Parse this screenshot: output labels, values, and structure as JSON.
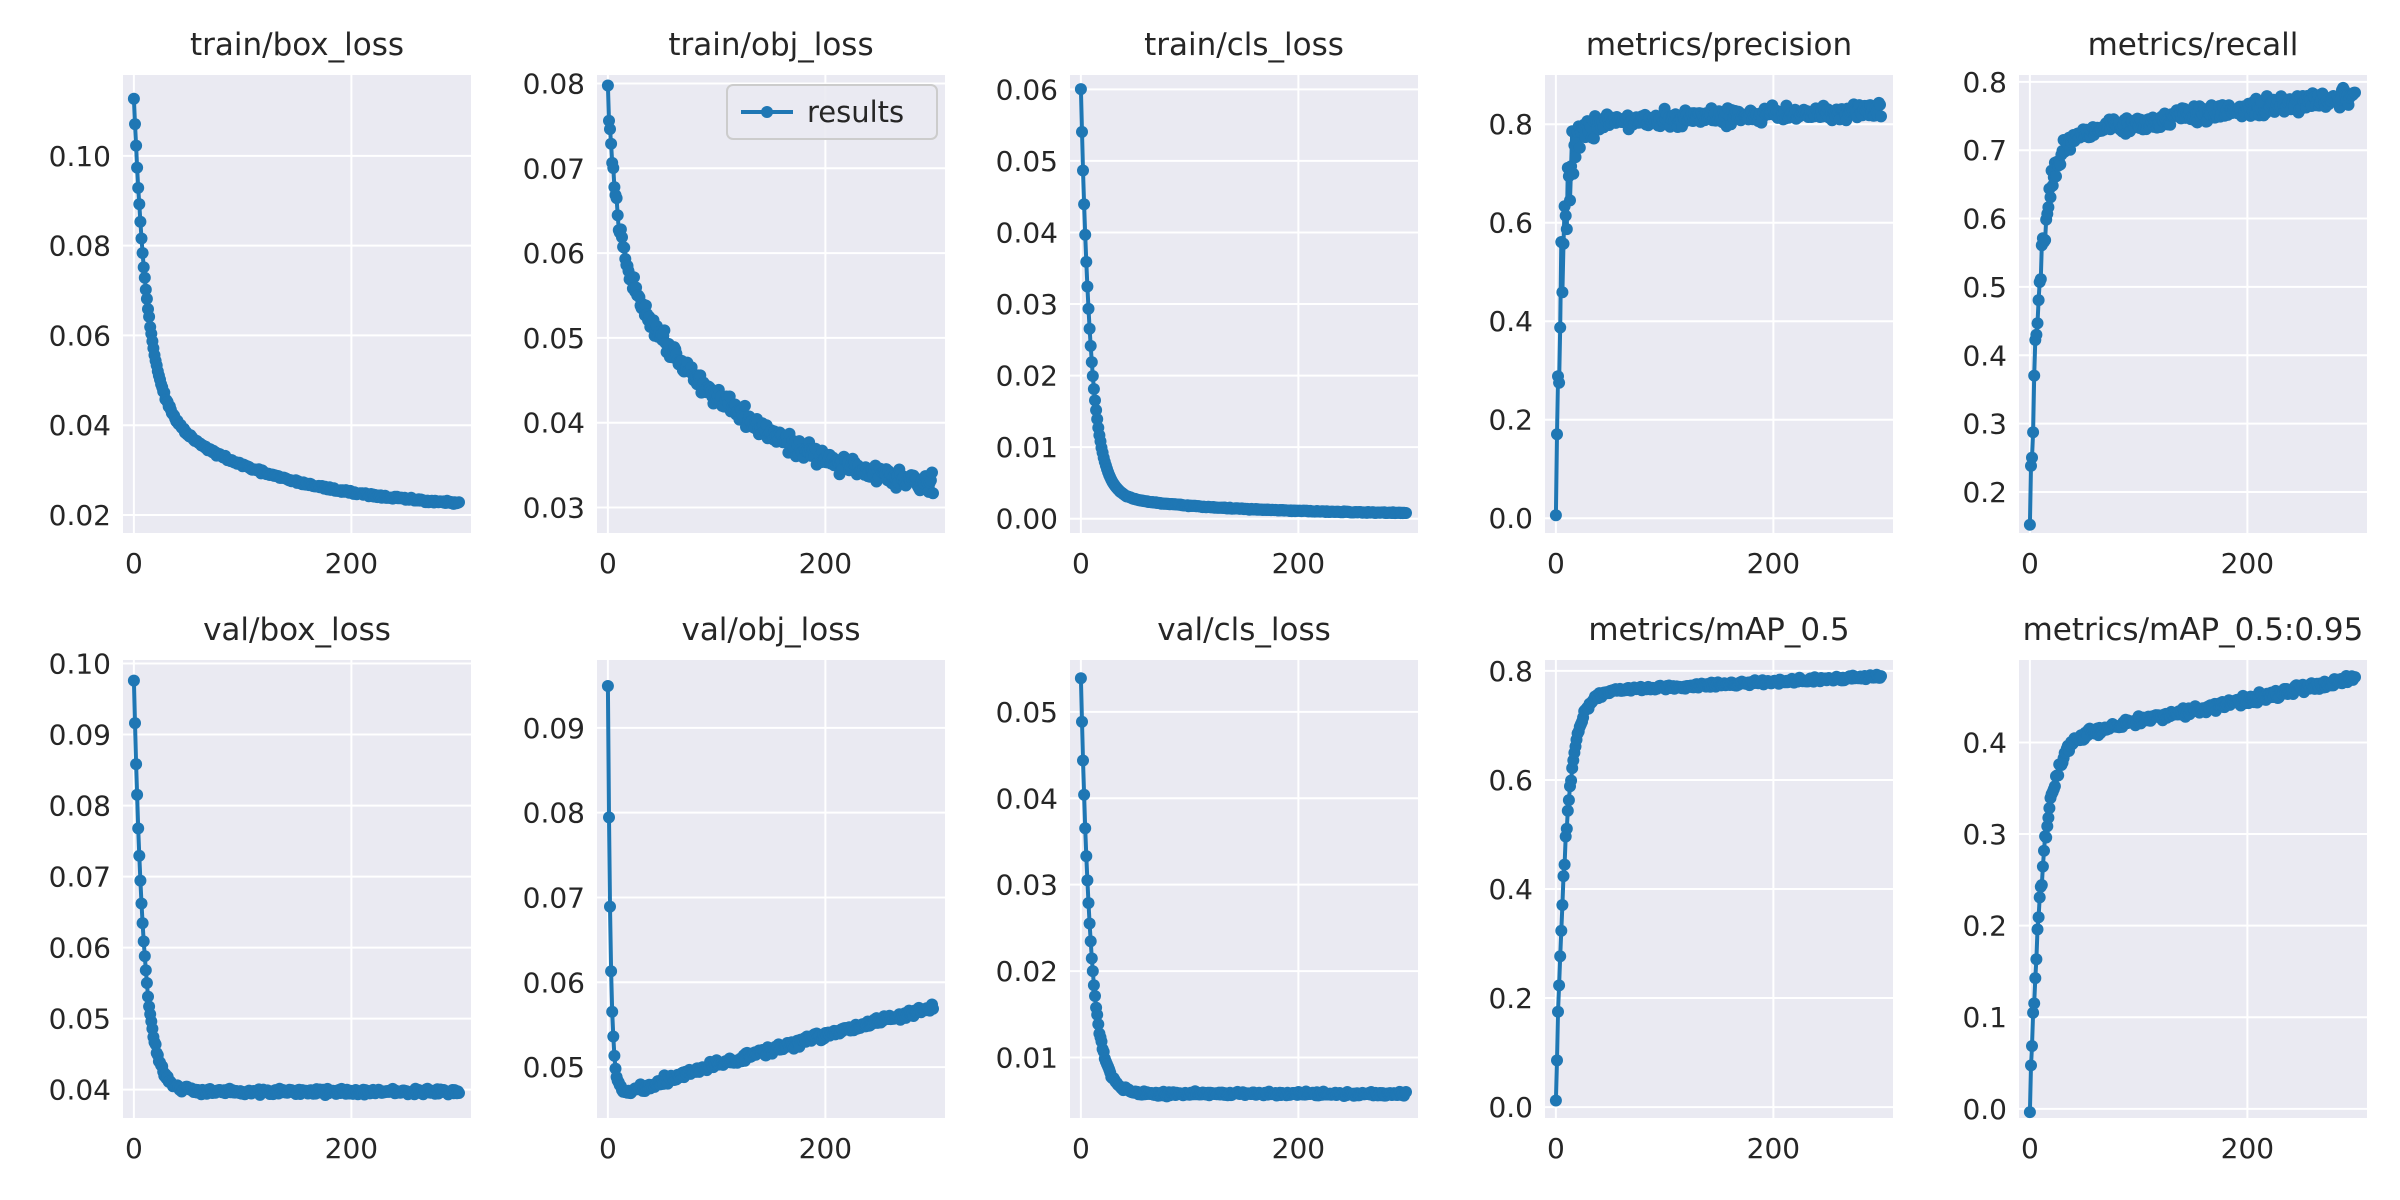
{
  "legend": {
    "label": "results",
    "panel": 1
  },
  "colors": {
    "series": "#1f77b4",
    "panel_bg": "#eaeaf2",
    "grid": "#ffffff",
    "text": "#262626"
  },
  "chart_data": [
    {
      "type": "line",
      "title": "train/box_loss",
      "xlim": [
        -10,
        310
      ],
      "ylim": [
        0.016,
        0.118
      ],
      "xticks": [
        0,
        200
      ],
      "yticks": [
        0.02,
        0.04,
        0.06,
        0.08,
        0.1
      ],
      "ytick_labels": [
        "0.02",
        "0.04",
        "0.06",
        "0.08",
        "0.10"
      ],
      "curve": {
        "kind": "decay",
        "start": 0.113,
        "end": 0.021,
        "tau": 12,
        "slow": 0.025,
        "noise": 0.0005
      }
    },
    {
      "type": "line",
      "title": "train/obj_loss",
      "xlim": [
        -10,
        310
      ],
      "ylim": [
        0.027,
        0.081
      ],
      "xticks": [
        0,
        200
      ],
      "yticks": [
        0.03,
        0.04,
        0.05,
        0.06,
        0.07,
        0.08
      ],
      "ytick_labels": [
        "0.03",
        "0.04",
        "0.05",
        "0.06",
        "0.07",
        "0.08"
      ],
      "curve": {
        "kind": "decay",
        "start": 0.079,
        "end": 0.031,
        "tau": 8,
        "slow": 0.03,
        "noise": 0.0016
      }
    },
    {
      "type": "line",
      "title": "train/cls_loss",
      "xlim": [
        -10,
        310
      ],
      "ylim": [
        -0.002,
        0.062
      ],
      "xticks": [
        0,
        200
      ],
      "yticks": [
        0.0,
        0.01,
        0.02,
        0.03,
        0.04,
        0.05,
        0.06
      ],
      "ytick_labels": [
        "0.00",
        "0.01",
        "0.02",
        "0.03",
        "0.04",
        "0.05",
        "0.06"
      ],
      "curve": {
        "kind": "decay",
        "start": 0.06,
        "end": 0.0006,
        "tau": 9,
        "slow": 0.003,
        "noise": 0.0001
      }
    },
    {
      "type": "line",
      "title": "metrics/precision",
      "xlim": [
        -10,
        310
      ],
      "ylim": [
        -0.03,
        0.9
      ],
      "xticks": [
        0,
        200
      ],
      "yticks": [
        0.0,
        0.2,
        0.4,
        0.6,
        0.8
      ],
      "ytick_labels": [
        "0.0",
        "0.2",
        "0.4",
        "0.6",
        "0.8"
      ],
      "curve": {
        "kind": "rise",
        "start": 0.01,
        "end": 0.8,
        "tau": 6,
        "late": 0.83,
        "noise": 0.025,
        "early_noise": 0.22
      }
    },
    {
      "type": "line",
      "title": "metrics/recall",
      "xlim": [
        -10,
        310
      ],
      "ylim": [
        0.14,
        0.81
      ],
      "xticks": [
        0,
        200
      ],
      "yticks": [
        0.2,
        0.3,
        0.4,
        0.5,
        0.6,
        0.7,
        0.8
      ],
      "ytick_labels": [
        "0.2",
        "0.3",
        "0.4",
        "0.5",
        "0.6",
        "0.7",
        "0.8"
      ],
      "curve": {
        "kind": "rise",
        "start": 0.17,
        "end": 0.72,
        "tau": 10,
        "late": 0.78,
        "noise": 0.018,
        "early_noise": 0.05
      }
    },
    {
      "type": "line",
      "title": "val/box_loss",
      "xlim": [
        -10,
        310
      ],
      "ylim": [
        0.036,
        0.1005
      ],
      "xticks": [
        0,
        200
      ],
      "yticks": [
        0.04,
        0.05,
        0.06,
        0.07,
        0.08,
        0.09,
        0.1
      ],
      "ytick_labels": [
        "0.04",
        "0.05",
        "0.06",
        "0.07",
        "0.08",
        "0.09",
        "0.10"
      ],
      "curve": {
        "kind": "decay",
        "start": 0.0975,
        "end": 0.0397,
        "tau": 9,
        "slow": 0.0,
        "noise": 0.0006
      }
    },
    {
      "type": "line",
      "title": "val/obj_loss",
      "xlim": [
        -10,
        310
      ],
      "ylim": [
        0.044,
        0.098
      ],
      "xticks": [
        0,
        200
      ],
      "yticks": [
        0.05,
        0.06,
        0.07,
        0.08,
        0.09
      ],
      "ytick_labels": [
        "0.05",
        "0.06",
        "0.07",
        "0.08",
        "0.09"
      ],
      "curve": {
        "kind": "dip",
        "start": 0.095,
        "min": 0.047,
        "min_at": 20,
        "end": 0.057,
        "tau": 2.5,
        "noise": 0.0007
      }
    },
    {
      "type": "line",
      "title": "val/cls_loss",
      "xlim": [
        -10,
        310
      ],
      "ylim": [
        0.003,
        0.056
      ],
      "xticks": [
        0,
        200
      ],
      "yticks": [
        0.01,
        0.02,
        0.03,
        0.04,
        0.05
      ],
      "ytick_labels": [
        "0.01",
        "0.02",
        "0.03",
        "0.04",
        "0.05"
      ],
      "curve": {
        "kind": "decay",
        "start": 0.054,
        "end": 0.0058,
        "tau": 9,
        "slow": 0.0,
        "noise": 0.00035
      }
    },
    {
      "type": "line",
      "title": "metrics/mAP_0.5",
      "xlim": [
        -10,
        310
      ],
      "ylim": [
        -0.02,
        0.82
      ],
      "xticks": [
        0,
        200
      ],
      "yticks": [
        0.0,
        0.2,
        0.4,
        0.6,
        0.8
      ],
      "ytick_labels": [
        "0.0",
        "0.2",
        "0.4",
        "0.6",
        "0.8"
      ],
      "curve": {
        "kind": "rise",
        "start": 0.01,
        "end": 0.76,
        "tau": 9,
        "late": 0.79,
        "noise": 0.006,
        "early_noise": 0.02
      }
    },
    {
      "type": "line",
      "title": "metrics/mAP_0.5:0.95",
      "xlim": [
        -10,
        310
      ],
      "ylim": [
        -0.01,
        0.49
      ],
      "xticks": [
        0,
        200
      ],
      "yticks": [
        0.0,
        0.1,
        0.2,
        0.3,
        0.4
      ],
      "ytick_labels": [
        "0.0",
        "0.1",
        "0.2",
        "0.3",
        "0.4"
      ],
      "curve": {
        "kind": "rise",
        "start": 0.0,
        "end": 0.4,
        "tau": 11,
        "late": 0.47,
        "noise": 0.007,
        "early_noise": 0.015
      }
    }
  ]
}
